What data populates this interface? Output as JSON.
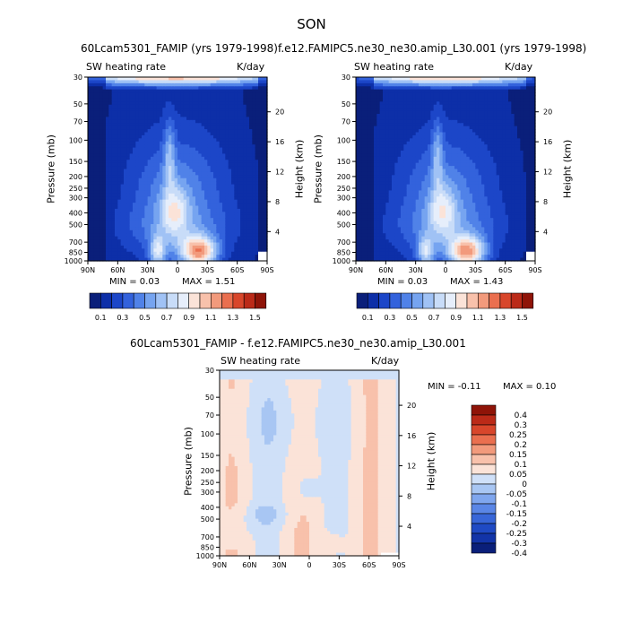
{
  "figure": {
    "season": "SON"
  },
  "panels": [
    {
      "title": "60Lcam5301_FAMIP (yrs 1979-1998)",
      "variable": "SW heating rate",
      "units": "K/day",
      "min_text": "MIN =     0.03",
      "max_text": "MAX =     1.51"
    },
    {
      "title": "f.e12.FAMIPC5.ne30_ne30.amip_L30.001 (yrs 1979-1998)",
      "variable": "SW heating rate",
      "units": "K/day",
      "min_text": "MIN =     0.03",
      "max_text": "MAX =     1.43"
    },
    {
      "title": "60Lcam5301_FAMIP - f.e12.FAMIPC5.ne30_ne30.amip_L30.001",
      "variable": "SW heating rate",
      "units": "K/day",
      "min_text": "MIN =   -0.11",
      "max_text": "MAX =     0.10"
    }
  ],
  "axes": {
    "ylabel": "Pressure (mb)",
    "ylabel_right": "Height (km)"
  },
  "chart_data": {
    "type": "contour",
    "x_ticks": [
      "90N",
      "60N",
      "30N",
      "0",
      "30S",
      "60S",
      "90S"
    ],
    "x_values": [
      90,
      60,
      30,
      0,
      -30,
      -60,
      -90
    ],
    "xlim": [
      90,
      -90
    ],
    "pressure_ticks": [
      "30",
      "50",
      "70",
      "100",
      "150",
      "200",
      "250",
      "300",
      "400",
      "500",
      "700",
      "850",
      "1000"
    ],
    "pressure_values": [
      30,
      50,
      70,
      100,
      150,
      200,
      250,
      300,
      400,
      500,
      700,
      850,
      1000
    ],
    "ylim_mb": [
      1000,
      30
    ],
    "height_ticks": [
      "4",
      "8",
      "12",
      "16",
      "20"
    ],
    "height_values_km": [
      4,
      8,
      12,
      16,
      20
    ],
    "colorbar_main": {
      "labels": [
        "0.1",
        "0.3",
        "0.5",
        "0.7",
        "0.9",
        "1.1",
        "1.3",
        "1.5"
      ],
      "levels": [
        0.1,
        0.2,
        0.3,
        0.4,
        0.5,
        0.6,
        0.7,
        0.8,
        0.9,
        1.0,
        1.1,
        1.2,
        1.3,
        1.4,
        1.5
      ],
      "colors": [
        "#0a1f7a",
        "#0d2fa8",
        "#1c46c8",
        "#3362dc",
        "#5082e8",
        "#76a4f0",
        "#a0c2f5",
        "#c8dcf8",
        "#e6eefb",
        "#fbe3d8",
        "#f8c1ab",
        "#f29a7c",
        "#ea6f4f",
        "#d8462b",
        "#bb2a18",
        "#8f1408"
      ]
    },
    "colorbar_diff": {
      "labels": [
        "0.4",
        "0.3",
        "0.25",
        "0.2",
        "0.15",
        "0.1",
        "0.05",
        "0",
        "-0.05",
        "-0.1",
        "-0.15",
        "-0.2",
        "-0.25",
        "-0.3",
        "-0.4"
      ],
      "colors": [
        "#8f1408",
        "#bb2a18",
        "#d8462b",
        "#ea6f4f",
        "#f29a7c",
        "#f8c1ab",
        "#fbe3d8",
        "#cfe0f8",
        "#a8c6f3",
        "#7fa6ee",
        "#5a86e6",
        "#3866d8",
        "#1f4ac4",
        "#1234a8",
        "#0a1f7a"
      ]
    }
  }
}
